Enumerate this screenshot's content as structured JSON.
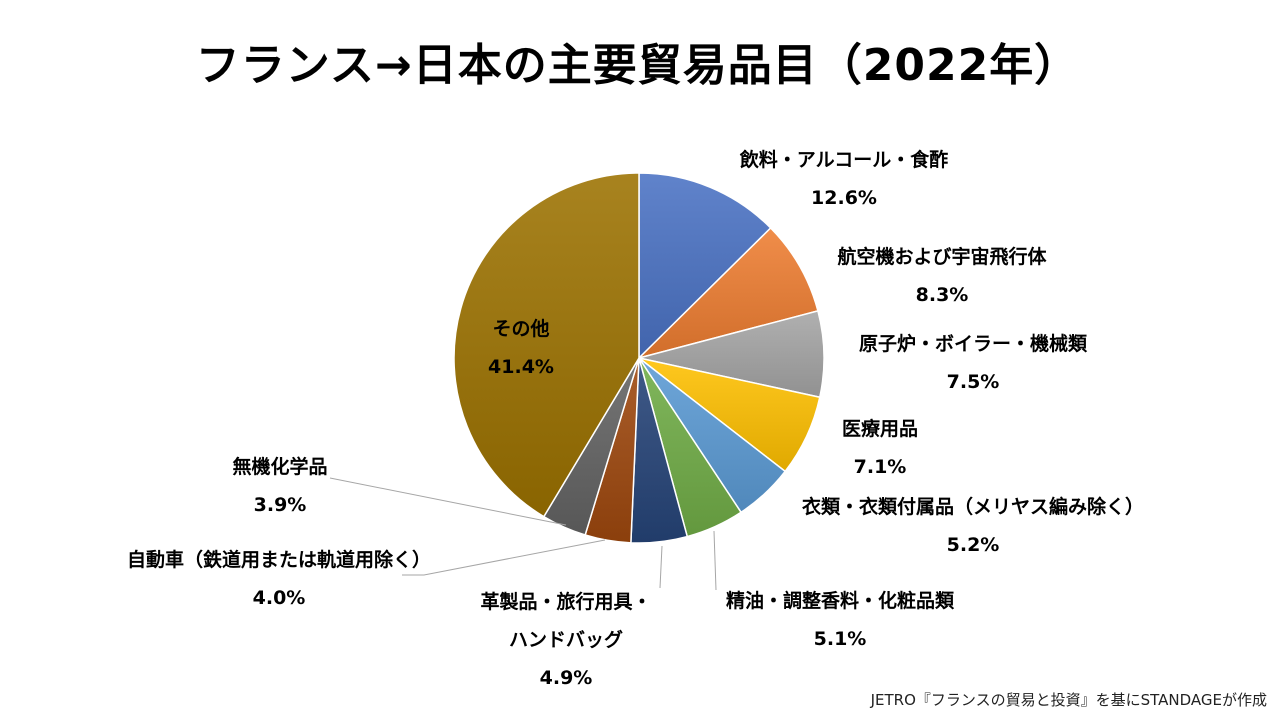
{
  "chart_data": {
    "type": "pie",
    "title": "フランス→日本の主要貿易品目（2022年）",
    "slices": [
      {
        "label": "飲料・アルコール・食酢",
        "value": 12.6,
        "display": "12.6%",
        "color": "#4A72C4"
      },
      {
        "label": "航空機および宇宙飛行体",
        "value": 8.3,
        "display": "8.3%",
        "color": "#EE7D31"
      },
      {
        "label": "原子炉・ボイラー・機械類",
        "value": 7.5,
        "display": "7.5%",
        "color": "#A5A5A5"
      },
      {
        "label": "医療用品",
        "value": 7.1,
        "display": "7.1%",
        "color": "#FFC000"
      },
      {
        "label": "衣類・衣類付属品（メリヤス編み除く）",
        "value": 5.2,
        "display": "5.2%",
        "color": "#5B9BD5"
      },
      {
        "label": "精油・調整香料・化粧品類",
        "value": 5.1,
        "display": "5.1%",
        "color": "#70AD47"
      },
      {
        "label": "革製品・旅行用具・ハンドバッグ",
        "label_lines": [
          "革製品・旅行用具・",
          "ハンドバッグ"
        ],
        "value": 4.9,
        "display": "4.9%",
        "color": "#264478"
      },
      {
        "label": "自動車（鉄道用または軌道用除く）",
        "value": 4.0,
        "display": "4.0%",
        "color": "#9E480E"
      },
      {
        "label": "無機化学品",
        "value": 3.9,
        "display": "3.9%",
        "color": "#636363"
      },
      {
        "label": "その他",
        "value": 41.4,
        "display": "41.4%",
        "color": "#9C7200"
      }
    ]
  },
  "source_note": "JETRO『フランスの貿易と投資』を基にSTANDAGEが作成"
}
